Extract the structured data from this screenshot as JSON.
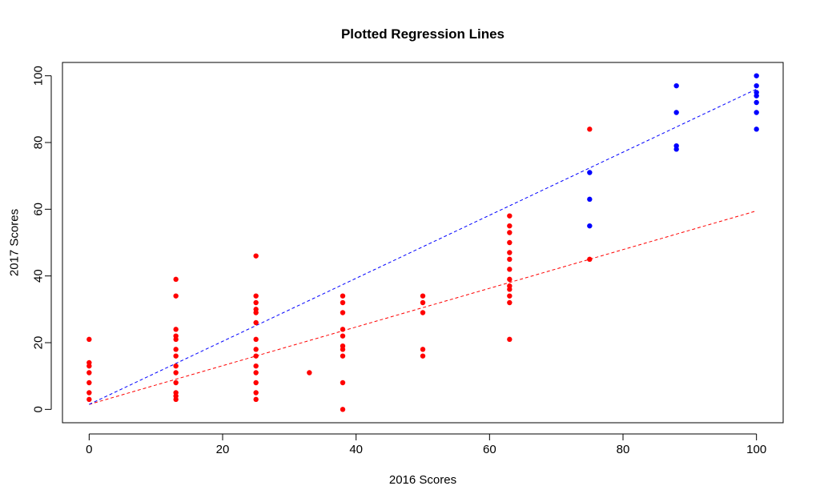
{
  "chart_data": {
    "type": "scatter",
    "title": "Plotted Regression Lines",
    "xlabel": "2016 Scores",
    "ylabel": "2017 Scores",
    "xlim": [
      -4,
      104
    ],
    "ylim": [
      -4,
      104
    ],
    "xticks": [
      0,
      20,
      40,
      60,
      80,
      100
    ],
    "yticks": [
      0,
      20,
      40,
      60,
      80,
      100
    ],
    "grid": false,
    "series": [
      {
        "color": "#ff0000",
        "points": [
          [
            0,
            3
          ],
          [
            0,
            5
          ],
          [
            0,
            8
          ],
          [
            0,
            11
          ],
          [
            0,
            13
          ],
          [
            0,
            14
          ],
          [
            0,
            21
          ],
          [
            13,
            3
          ],
          [
            13,
            4
          ],
          [
            13,
            5
          ],
          [
            13,
            8
          ],
          [
            13,
            11
          ],
          [
            13,
            13
          ],
          [
            13,
            16
          ],
          [
            13,
            18
          ],
          [
            13,
            21
          ],
          [
            13,
            22
          ],
          [
            13,
            24
          ],
          [
            13,
            34
          ],
          [
            13,
            39
          ],
          [
            25,
            3
          ],
          [
            25,
            5
          ],
          [
            25,
            8
          ],
          [
            25,
            11
          ],
          [
            25,
            13
          ],
          [
            25,
            16
          ],
          [
            25,
            18
          ],
          [
            25,
            21
          ],
          [
            25,
            26
          ],
          [
            25,
            29
          ],
          [
            25,
            30
          ],
          [
            25,
            32
          ],
          [
            25,
            34
          ],
          [
            25,
            46
          ],
          [
            33,
            11
          ],
          [
            38,
            0
          ],
          [
            38,
            8
          ],
          [
            38,
            16
          ],
          [
            38,
            18
          ],
          [
            38,
            19
          ],
          [
            38,
            22
          ],
          [
            38,
            24
          ],
          [
            38,
            29
          ],
          [
            38,
            32
          ],
          [
            38,
            34
          ],
          [
            50,
            16
          ],
          [
            50,
            18
          ],
          [
            50,
            29
          ],
          [
            50,
            32
          ],
          [
            50,
            34
          ],
          [
            63,
            21
          ],
          [
            63,
            32
          ],
          [
            63,
            34
          ],
          [
            63,
            36
          ],
          [
            63,
            37
          ],
          [
            63,
            39
          ],
          [
            63,
            42
          ],
          [
            63,
            45
          ],
          [
            63,
            47
          ],
          [
            63,
            50
          ],
          [
            63,
            53
          ],
          [
            63,
            55
          ],
          [
            63,
            58
          ],
          [
            75,
            45
          ],
          [
            75,
            84
          ]
        ]
      },
      {
        "color": "#0000ff",
        "points": [
          [
            75,
            55
          ],
          [
            75,
            63
          ],
          [
            75,
            71
          ],
          [
            88,
            78
          ],
          [
            88,
            79
          ],
          [
            88,
            89
          ],
          [
            88,
            97
          ],
          [
            100,
            84
          ],
          [
            100,
            89
          ],
          [
            100,
            92
          ],
          [
            100,
            94
          ],
          [
            100,
            95
          ],
          [
            100,
            97
          ],
          [
            100,
            100
          ]
        ]
      }
    ],
    "lines": [
      {
        "color": "#ff0000",
        "style": "dashed",
        "from": [
          0,
          1.5
        ],
        "to": [
          100,
          59.5
        ]
      },
      {
        "color": "#0000ff",
        "style": "dashed",
        "from": [
          0,
          1.5
        ],
        "to": [
          100,
          96
        ]
      }
    ]
  }
}
